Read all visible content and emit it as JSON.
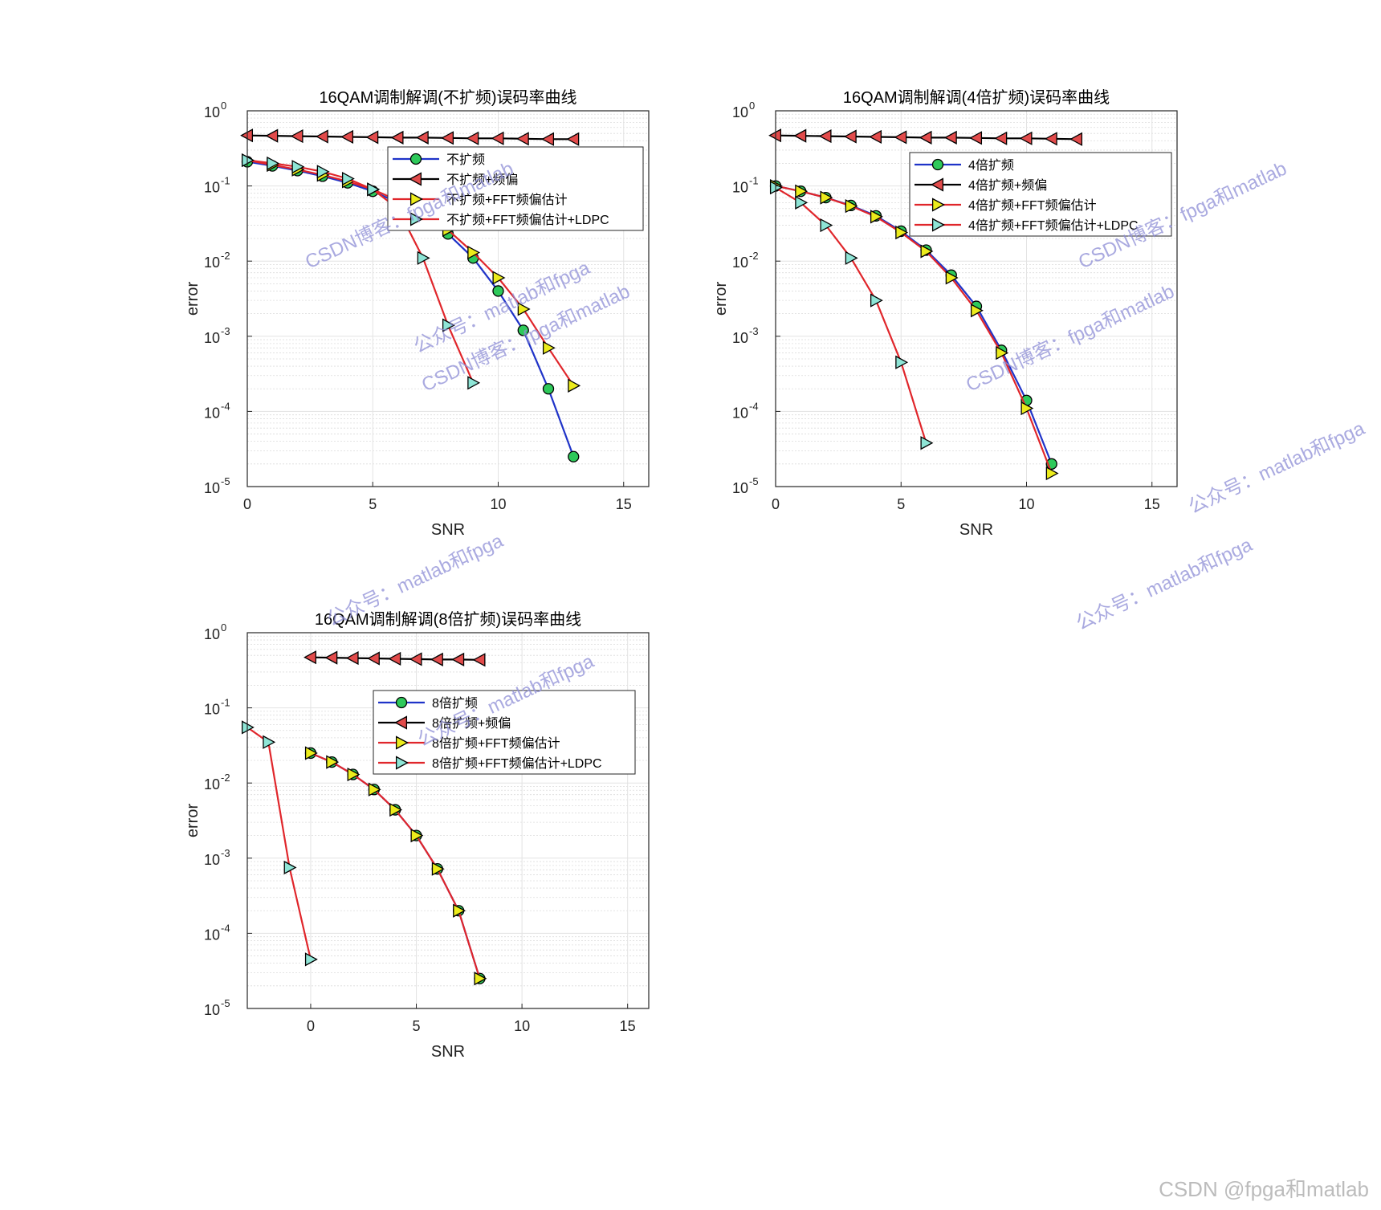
{
  "credit": "CSDN @fpga和matlab",
  "watermarks": [
    "CSDN博客：fpga和matlab",
    "公众号：matlab和fpga"
  ],
  "colors": {
    "blue": "#1f33c8",
    "black": "#000000",
    "red": "#e0262b",
    "green_marker": "#2ec95a",
    "red_marker": "#e24b4b",
    "yellow_marker": "#ecec1c",
    "cyan_marker": "#8ee5d6"
  },
  "chart_data": [
    {
      "type": "line",
      "title": "16QAM调制解调(不扩频)误码率曲线",
      "xlabel": "SNR",
      "ylabel": "error",
      "xlim": [
        0,
        16
      ],
      "ylim": [
        1e-05,
        1
      ],
      "yscale": "log",
      "xticks": [
        0,
        5,
        10,
        15
      ],
      "yticks": [
        {
          "base": "10",
          "exp": "0"
        },
        {
          "base": "10",
          "exp": "-1"
        },
        {
          "base": "10",
          "exp": "-2"
        },
        {
          "base": "10",
          "exp": "-3"
        },
        {
          "base": "10",
          "exp": "-4"
        },
        {
          "base": "10",
          "exp": "-5"
        }
      ],
      "grid": true,
      "legend_position": "top-right",
      "series": [
        {
          "name": "不扩频",
          "color": "#1f33c8",
          "marker": "circle",
          "marker_color": "#2ec95a",
          "x": [
            0,
            1,
            2,
            3,
            4,
            5,
            6,
            7,
            8,
            9,
            10,
            11,
            12,
            13
          ],
          "y": [
            0.21,
            0.185,
            0.16,
            0.135,
            0.11,
            0.085,
            0.06,
            0.04,
            0.023,
            0.011,
            0.004,
            0.0012,
            0.0002,
            2.5e-05
          ]
        },
        {
          "name": "不扩频+频偏",
          "color": "#000000",
          "marker": "triangle-left",
          "marker_color": "#e24b4b",
          "x": [
            0,
            1,
            2,
            3,
            4,
            5,
            6,
            7,
            8,
            9,
            10,
            11,
            12,
            13
          ],
          "y": [
            0.47,
            0.465,
            0.46,
            0.455,
            0.45,
            0.445,
            0.44,
            0.44,
            0.435,
            0.43,
            0.43,
            0.425,
            0.42,
            0.42
          ]
        },
        {
          "name": "不扩频+FFT频偏估计",
          "color": "#e0262b",
          "marker": "triangle-right",
          "marker_color": "#ecec1c",
          "x": [
            0,
            1,
            2,
            3,
            4,
            5,
            6,
            7,
            8,
            9,
            10,
            11,
            12,
            13
          ],
          "y": [
            0.22,
            0.19,
            0.165,
            0.14,
            0.115,
            0.09,
            0.064,
            0.043,
            0.026,
            0.013,
            0.006,
            0.0023,
            0.0007,
            0.00022
          ]
        },
        {
          "name": "不扩频+FFT频偏估计+LDPC",
          "color": "#e0262b",
          "marker": "triangle-right",
          "marker_color": "#8ee5d6",
          "x": [
            0,
            1,
            2,
            3,
            4,
            5,
            6,
            7,
            8,
            9
          ],
          "y": [
            0.22,
            0.2,
            0.18,
            0.155,
            0.125,
            0.09,
            0.05,
            0.011,
            0.0014,
            0.00024
          ]
        }
      ]
    },
    {
      "type": "line",
      "title": "16QAM调制解调(4倍扩频)误码率曲线",
      "xlabel": "SNR",
      "ylabel": "error",
      "xlim": [
        0,
        16
      ],
      "ylim": [
        1e-05,
        1
      ],
      "yscale": "log",
      "xticks": [
        0,
        5,
        10,
        15
      ],
      "yticks": [
        {
          "base": "10",
          "exp": "0"
        },
        {
          "base": "10",
          "exp": "-1"
        },
        {
          "base": "10",
          "exp": "-2"
        },
        {
          "base": "10",
          "exp": "-3"
        },
        {
          "base": "10",
          "exp": "-4"
        },
        {
          "base": "10",
          "exp": "-5"
        }
      ],
      "grid": true,
      "legend_position": "top-right",
      "series": [
        {
          "name": "4倍扩频",
          "color": "#1f33c8",
          "marker": "circle",
          "marker_color": "#2ec95a",
          "x": [
            0,
            1,
            2,
            3,
            4,
            5,
            6,
            7,
            8,
            9,
            10,
            11
          ],
          "y": [
            0.1,
            0.085,
            0.07,
            0.055,
            0.04,
            0.025,
            0.014,
            0.0065,
            0.0025,
            0.00065,
            0.00014,
            2e-05
          ]
        },
        {
          "name": "4倍扩频+频偏",
          "color": "#000000",
          "marker": "triangle-left",
          "marker_color": "#e24b4b",
          "x": [
            0,
            1,
            2,
            3,
            4,
            5,
            6,
            7,
            8,
            9,
            10,
            11,
            12
          ],
          "y": [
            0.47,
            0.465,
            0.46,
            0.455,
            0.45,
            0.445,
            0.44,
            0.44,
            0.435,
            0.43,
            0.43,
            0.425,
            0.42
          ]
        },
        {
          "name": "4倍扩频+FFT频偏估计",
          "color": "#e0262b",
          "marker": "triangle-right",
          "marker_color": "#ecec1c",
          "x": [
            0,
            1,
            2,
            3,
            4,
            5,
            6,
            7,
            8,
            9,
            10,
            11
          ],
          "y": [
            0.1,
            0.085,
            0.07,
            0.054,
            0.039,
            0.024,
            0.0135,
            0.006,
            0.0022,
            0.0006,
            0.00011,
            1.5e-05
          ]
        },
        {
          "name": "4倍扩频+FFT频偏估计+LDPC",
          "color": "#e0262b",
          "marker": "triangle-right",
          "marker_color": "#8ee5d6",
          "x": [
            0,
            1,
            2,
            3,
            4,
            5,
            6
          ],
          "y": [
            0.095,
            0.06,
            0.03,
            0.011,
            0.003,
            0.00045,
            3.8e-05
          ]
        }
      ]
    },
    {
      "type": "line",
      "title": "16QAM调制解调(8倍扩频)误码率曲线",
      "xlabel": "SNR",
      "ylabel": "error",
      "xlim": [
        -3,
        16
      ],
      "ylim": [
        1e-05,
        1
      ],
      "yscale": "log",
      "xticks": [
        0,
        5,
        10,
        15
      ],
      "yticks": [
        {
          "base": "10",
          "exp": "0"
        },
        {
          "base": "10",
          "exp": "-1"
        },
        {
          "base": "10",
          "exp": "-2"
        },
        {
          "base": "10",
          "exp": "-3"
        },
        {
          "base": "10",
          "exp": "-4"
        },
        {
          "base": "10",
          "exp": "-5"
        }
      ],
      "grid": true,
      "legend_position": "top-right",
      "series": [
        {
          "name": "8倍扩频",
          "color": "#1f33c8",
          "marker": "circle",
          "marker_color": "#2ec95a",
          "x": [
            0,
            1,
            2,
            3,
            4,
            5,
            6,
            7,
            8
          ],
          "y": [
            0.025,
            0.019,
            0.013,
            0.0082,
            0.0044,
            0.002,
            0.00072,
            0.0002,
            2.5e-05
          ]
        },
        {
          "name": "8倍扩频+频偏",
          "color": "#000000",
          "marker": "triangle-left",
          "marker_color": "#e24b4b",
          "x": [
            0,
            1,
            2,
            3,
            4,
            5,
            6,
            7,
            8
          ],
          "y": [
            0.47,
            0.465,
            0.46,
            0.455,
            0.45,
            0.445,
            0.44,
            0.44,
            0.435
          ]
        },
        {
          "name": "8倍扩频+FFT频偏估计",
          "color": "#e0262b",
          "marker": "triangle-right",
          "marker_color": "#ecec1c",
          "x": [
            0,
            1,
            2,
            3,
            4,
            5,
            6,
            7,
            8
          ],
          "y": [
            0.025,
            0.019,
            0.013,
            0.0082,
            0.0044,
            0.002,
            0.00072,
            0.0002,
            2.5e-05
          ]
        },
        {
          "name": "8倍扩频+FFT频偏估计+LDPC",
          "color": "#e0262b",
          "marker": "triangle-right",
          "marker_color": "#8ee5d6",
          "x": [
            -3,
            -2,
            -1,
            0
          ],
          "y": [
            0.055,
            0.035,
            0.00075,
            4.5e-05
          ]
        }
      ]
    }
  ]
}
